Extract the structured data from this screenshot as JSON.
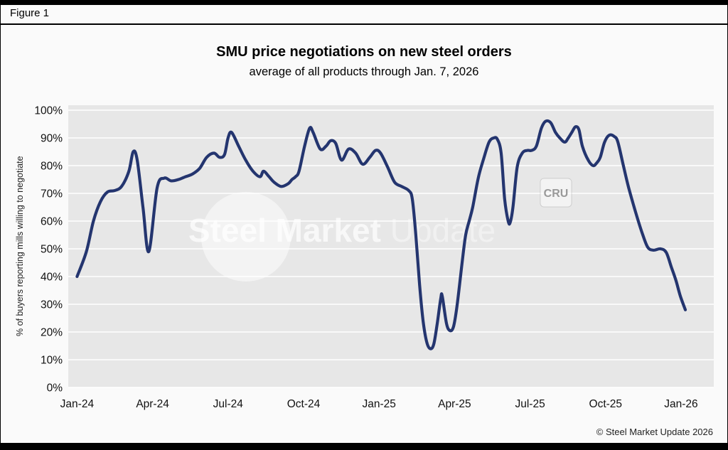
{
  "figure_label": "Figure 1",
  "footer": {
    "copyright": "© Steel Market Update 2026"
  },
  "watermark": {
    "text_bold": "Steel Market",
    "text_light": "Update",
    "badge": "CRU"
  },
  "chart_data": {
    "type": "line",
    "title": "SMU price negotiations on new steel orders",
    "subtitle": "average of all products through Jan. 7, 2026",
    "xlabel": "",
    "ylabel": "% of buyers reporting mills willing to negotiate",
    "ylim": [
      0,
      100
    ],
    "ytick_step": 10,
    "ytick_values": [
      0,
      10,
      20,
      30,
      40,
      50,
      60,
      70,
      80,
      90,
      100
    ],
    "ytick_labels": [
      "0%",
      "10%",
      "20%",
      "30%",
      "40%",
      "50%",
      "60%",
      "70%",
      "80%",
      "90%",
      "100%"
    ],
    "xtick_labels": [
      "Jan-24",
      "Apr-24",
      "Jul-24",
      "Oct-24",
      "Jan-25",
      "Apr-25",
      "Jul-25",
      "Oct-25",
      "Jan-26"
    ],
    "xtick_months": [
      0,
      3,
      6,
      9,
      12,
      15,
      18,
      21,
      24
    ],
    "xlim_months": [
      -0.35,
      25.3
    ],
    "grid": true,
    "legend": "none",
    "plot_bg": "#e7e7e7",
    "grid_color": "#ffffff",
    "line_color": "#24356f",
    "series": [
      {
        "name": "% of buyers reporting mills willing to negotiate",
        "points": [
          [
            0.0,
            40
          ],
          [
            0.37,
            49
          ],
          [
            0.65,
            60
          ],
          [
            0.93,
            67
          ],
          [
            1.21,
            70.5
          ],
          [
            1.49,
            71
          ],
          [
            1.77,
            72.5
          ],
          [
            2.06,
            78
          ],
          [
            2.23,
            85
          ],
          [
            2.39,
            82
          ],
          [
            2.62,
            65
          ],
          [
            2.85,
            49
          ],
          [
            3.18,
            72
          ],
          [
            3.46,
            75.5
          ],
          [
            3.74,
            74.5
          ],
          [
            4.03,
            75
          ],
          [
            4.31,
            76
          ],
          [
            4.59,
            77
          ],
          [
            4.87,
            79
          ],
          [
            5.15,
            83
          ],
          [
            5.44,
            84.5
          ],
          [
            5.66,
            83
          ],
          [
            5.86,
            84
          ],
          [
            6.0,
            90
          ],
          [
            6.14,
            92
          ],
          [
            6.42,
            87
          ],
          [
            6.7,
            82
          ],
          [
            6.99,
            78
          ],
          [
            7.27,
            76
          ],
          [
            7.41,
            78
          ],
          [
            7.63,
            76
          ],
          [
            7.83,
            74
          ],
          [
            8.11,
            72.5
          ],
          [
            8.39,
            73.5
          ],
          [
            8.54,
            75
          ],
          [
            8.68,
            76
          ],
          [
            8.82,
            78
          ],
          [
            9.04,
            87
          ],
          [
            9.24,
            93.5
          ],
          [
            9.38,
            92
          ],
          [
            9.66,
            86
          ],
          [
            9.89,
            87
          ],
          [
            10.08,
            89
          ],
          [
            10.28,
            88
          ],
          [
            10.51,
            82
          ],
          [
            10.79,
            86
          ],
          [
            11.07,
            84.5
          ],
          [
            11.35,
            80.5
          ],
          [
            11.63,
            83
          ],
          [
            11.86,
            85.5
          ],
          [
            12.06,
            84.5
          ],
          [
            12.34,
            79.5
          ],
          [
            12.62,
            74
          ],
          [
            12.9,
            72.5
          ],
          [
            13.18,
            71
          ],
          [
            13.32,
            68
          ],
          [
            13.46,
            55
          ],
          [
            13.61,
            37
          ],
          [
            13.75,
            24
          ],
          [
            13.89,
            16.5
          ],
          [
            14.03,
            14
          ],
          [
            14.17,
            15.5
          ],
          [
            14.31,
            23
          ],
          [
            14.45,
            32
          ],
          [
            14.51,
            33
          ],
          [
            14.68,
            23
          ],
          [
            14.82,
            20.5
          ],
          [
            14.96,
            22
          ],
          [
            15.1,
            29.5
          ],
          [
            15.3,
            45
          ],
          [
            15.44,
            55
          ],
          [
            15.58,
            60
          ],
          [
            15.72,
            65
          ],
          [
            15.94,
            75.5
          ],
          [
            16.14,
            82
          ],
          [
            16.37,
            88.5
          ],
          [
            16.56,
            90
          ],
          [
            16.7,
            89.5
          ],
          [
            16.85,
            84.5
          ],
          [
            16.99,
            68
          ],
          [
            17.13,
            60
          ],
          [
            17.21,
            59.5
          ],
          [
            17.32,
            65
          ],
          [
            17.49,
            79.5
          ],
          [
            17.69,
            84.5
          ],
          [
            17.89,
            85.5
          ],
          [
            18.06,
            85.5
          ],
          [
            18.25,
            87
          ],
          [
            18.45,
            93.5
          ],
          [
            18.62,
            96
          ],
          [
            18.82,
            95.5
          ],
          [
            19.01,
            92
          ],
          [
            19.18,
            90
          ],
          [
            19.38,
            88.5
          ],
          [
            19.52,
            90
          ],
          [
            19.66,
            92
          ],
          [
            19.8,
            94
          ],
          [
            19.94,
            93
          ],
          [
            20.08,
            87
          ],
          [
            20.31,
            82
          ],
          [
            20.51,
            80
          ],
          [
            20.65,
            81
          ],
          [
            20.79,
            83
          ],
          [
            20.96,
            88.5
          ],
          [
            21.15,
            91
          ],
          [
            21.35,
            90.5
          ],
          [
            21.49,
            88.5
          ],
          [
            21.72,
            79.5
          ],
          [
            21.92,
            72
          ],
          [
            22.2,
            63
          ],
          [
            22.48,
            55
          ],
          [
            22.68,
            50.5
          ],
          [
            22.9,
            49.5
          ],
          [
            23.18,
            50
          ],
          [
            23.41,
            48.7
          ],
          [
            23.61,
            43.5
          ],
          [
            23.8,
            38.5
          ],
          [
            23.97,
            33
          ],
          [
            24.17,
            28
          ]
        ]
      }
    ]
  }
}
